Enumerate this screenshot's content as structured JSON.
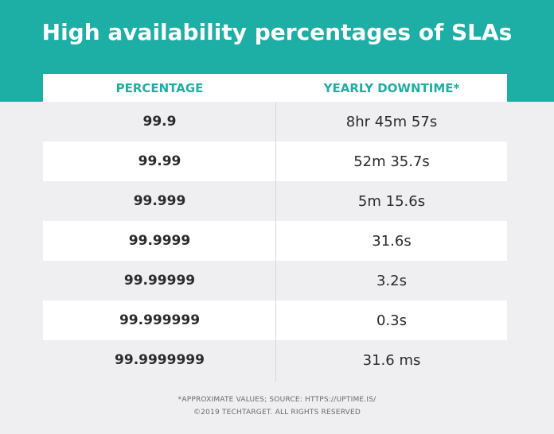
{
  "title": "High availability percentages of SLAs",
  "table": {
    "headers": [
      "PERCENTAGE",
      "YEARLY DOWNTIME*"
    ],
    "rows": [
      {
        "percentage": "99.9",
        "downtime": "8hr 45m 57s"
      },
      {
        "percentage": "99.99",
        "downtime": "52m 35.7s"
      },
      {
        "percentage": "99.999",
        "downtime": "5m 15.6s"
      },
      {
        "percentage": "99.9999",
        "downtime": "31.6s"
      },
      {
        "percentage": "99.99999",
        "downtime": "3.2s"
      },
      {
        "percentage": "99.999999",
        "downtime": "0.3s"
      },
      {
        "percentage": "99.9999999",
        "downtime": "31.6 ms"
      }
    ]
  },
  "footer": {
    "note": "*APPROXIMATE VALUES; SOURCE: HTTPS://UPTIME.IS/",
    "copyright": "©2019 TECHTARGET. ALL RIGHTS RESERVED"
  },
  "colors": {
    "accent": "#1daea6",
    "background": "#efeef0",
    "row_alt": "#ffffff",
    "text": "#2b2b2b"
  }
}
